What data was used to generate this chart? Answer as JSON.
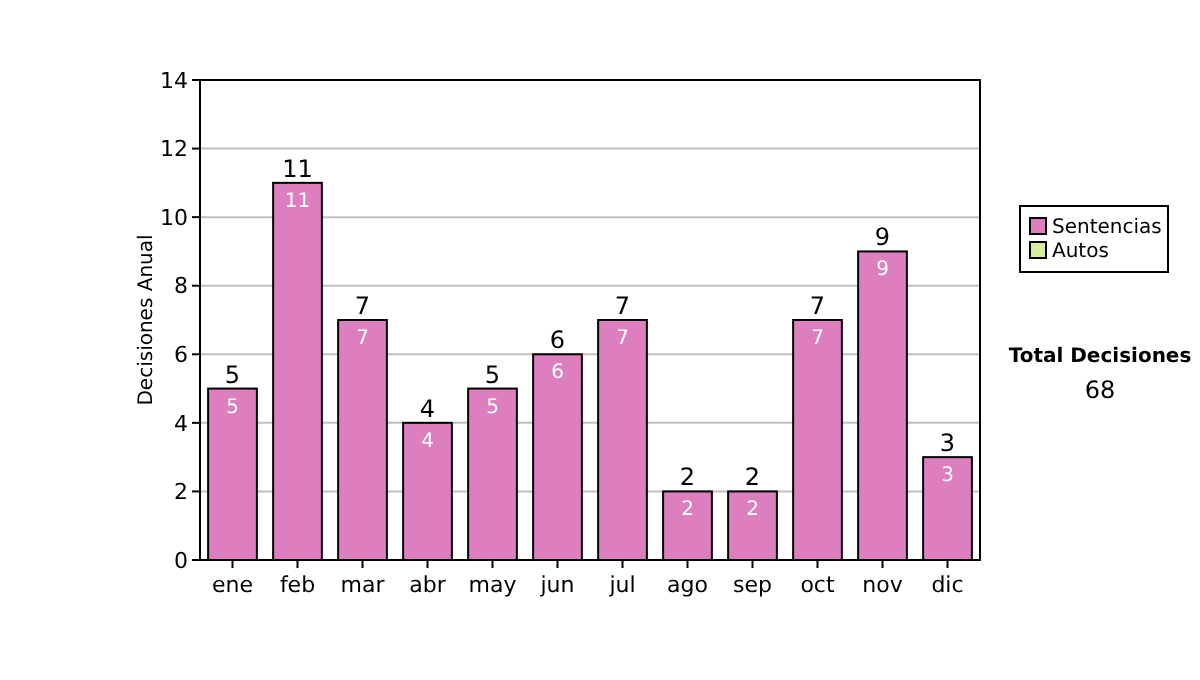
{
  "chart_data": {
    "type": "bar",
    "stacked": true,
    "ylabel": "Decisiones Anual",
    "categories": [
      "ene",
      "feb",
      "mar",
      "abr",
      "may",
      "jun",
      "jul",
      "ago",
      "sep",
      "oct",
      "nov",
      "dic"
    ],
    "series": [
      {
        "name": "Sentencias",
        "color": "#dd7fbf",
        "values": [
          5,
          11,
          7,
          4,
          5,
          6,
          7,
          2,
          2,
          7,
          9,
          3
        ],
        "value_labels": [
          "5",
          "11",
          "7",
          "4",
          "5",
          "6",
          "7",
          "2",
          "2",
          "7",
          "9",
          "3"
        ]
      },
      {
        "name": "Autos",
        "color": "#d8eca0",
        "values": [
          0,
          0,
          0,
          0,
          0,
          0,
          0,
          0,
          0,
          0,
          0,
          0
        ],
        "value_labels": [
          null,
          null,
          null,
          null,
          null,
          null,
          null,
          null,
          null,
          null,
          null,
          null
        ]
      }
    ],
    "totals": [
      "5",
      "11",
      "7",
      "4",
      "5",
      "6",
      "7",
      "2",
      "2",
      "7",
      "9",
      "3"
    ],
    "ylim": [
      0,
      14
    ],
    "yticks": [
      0,
      2,
      4,
      6,
      8,
      10,
      12,
      14
    ],
    "grid": "y",
    "legend": "right",
    "annotations": [
      "Total Decisiones",
      "68"
    ]
  }
}
